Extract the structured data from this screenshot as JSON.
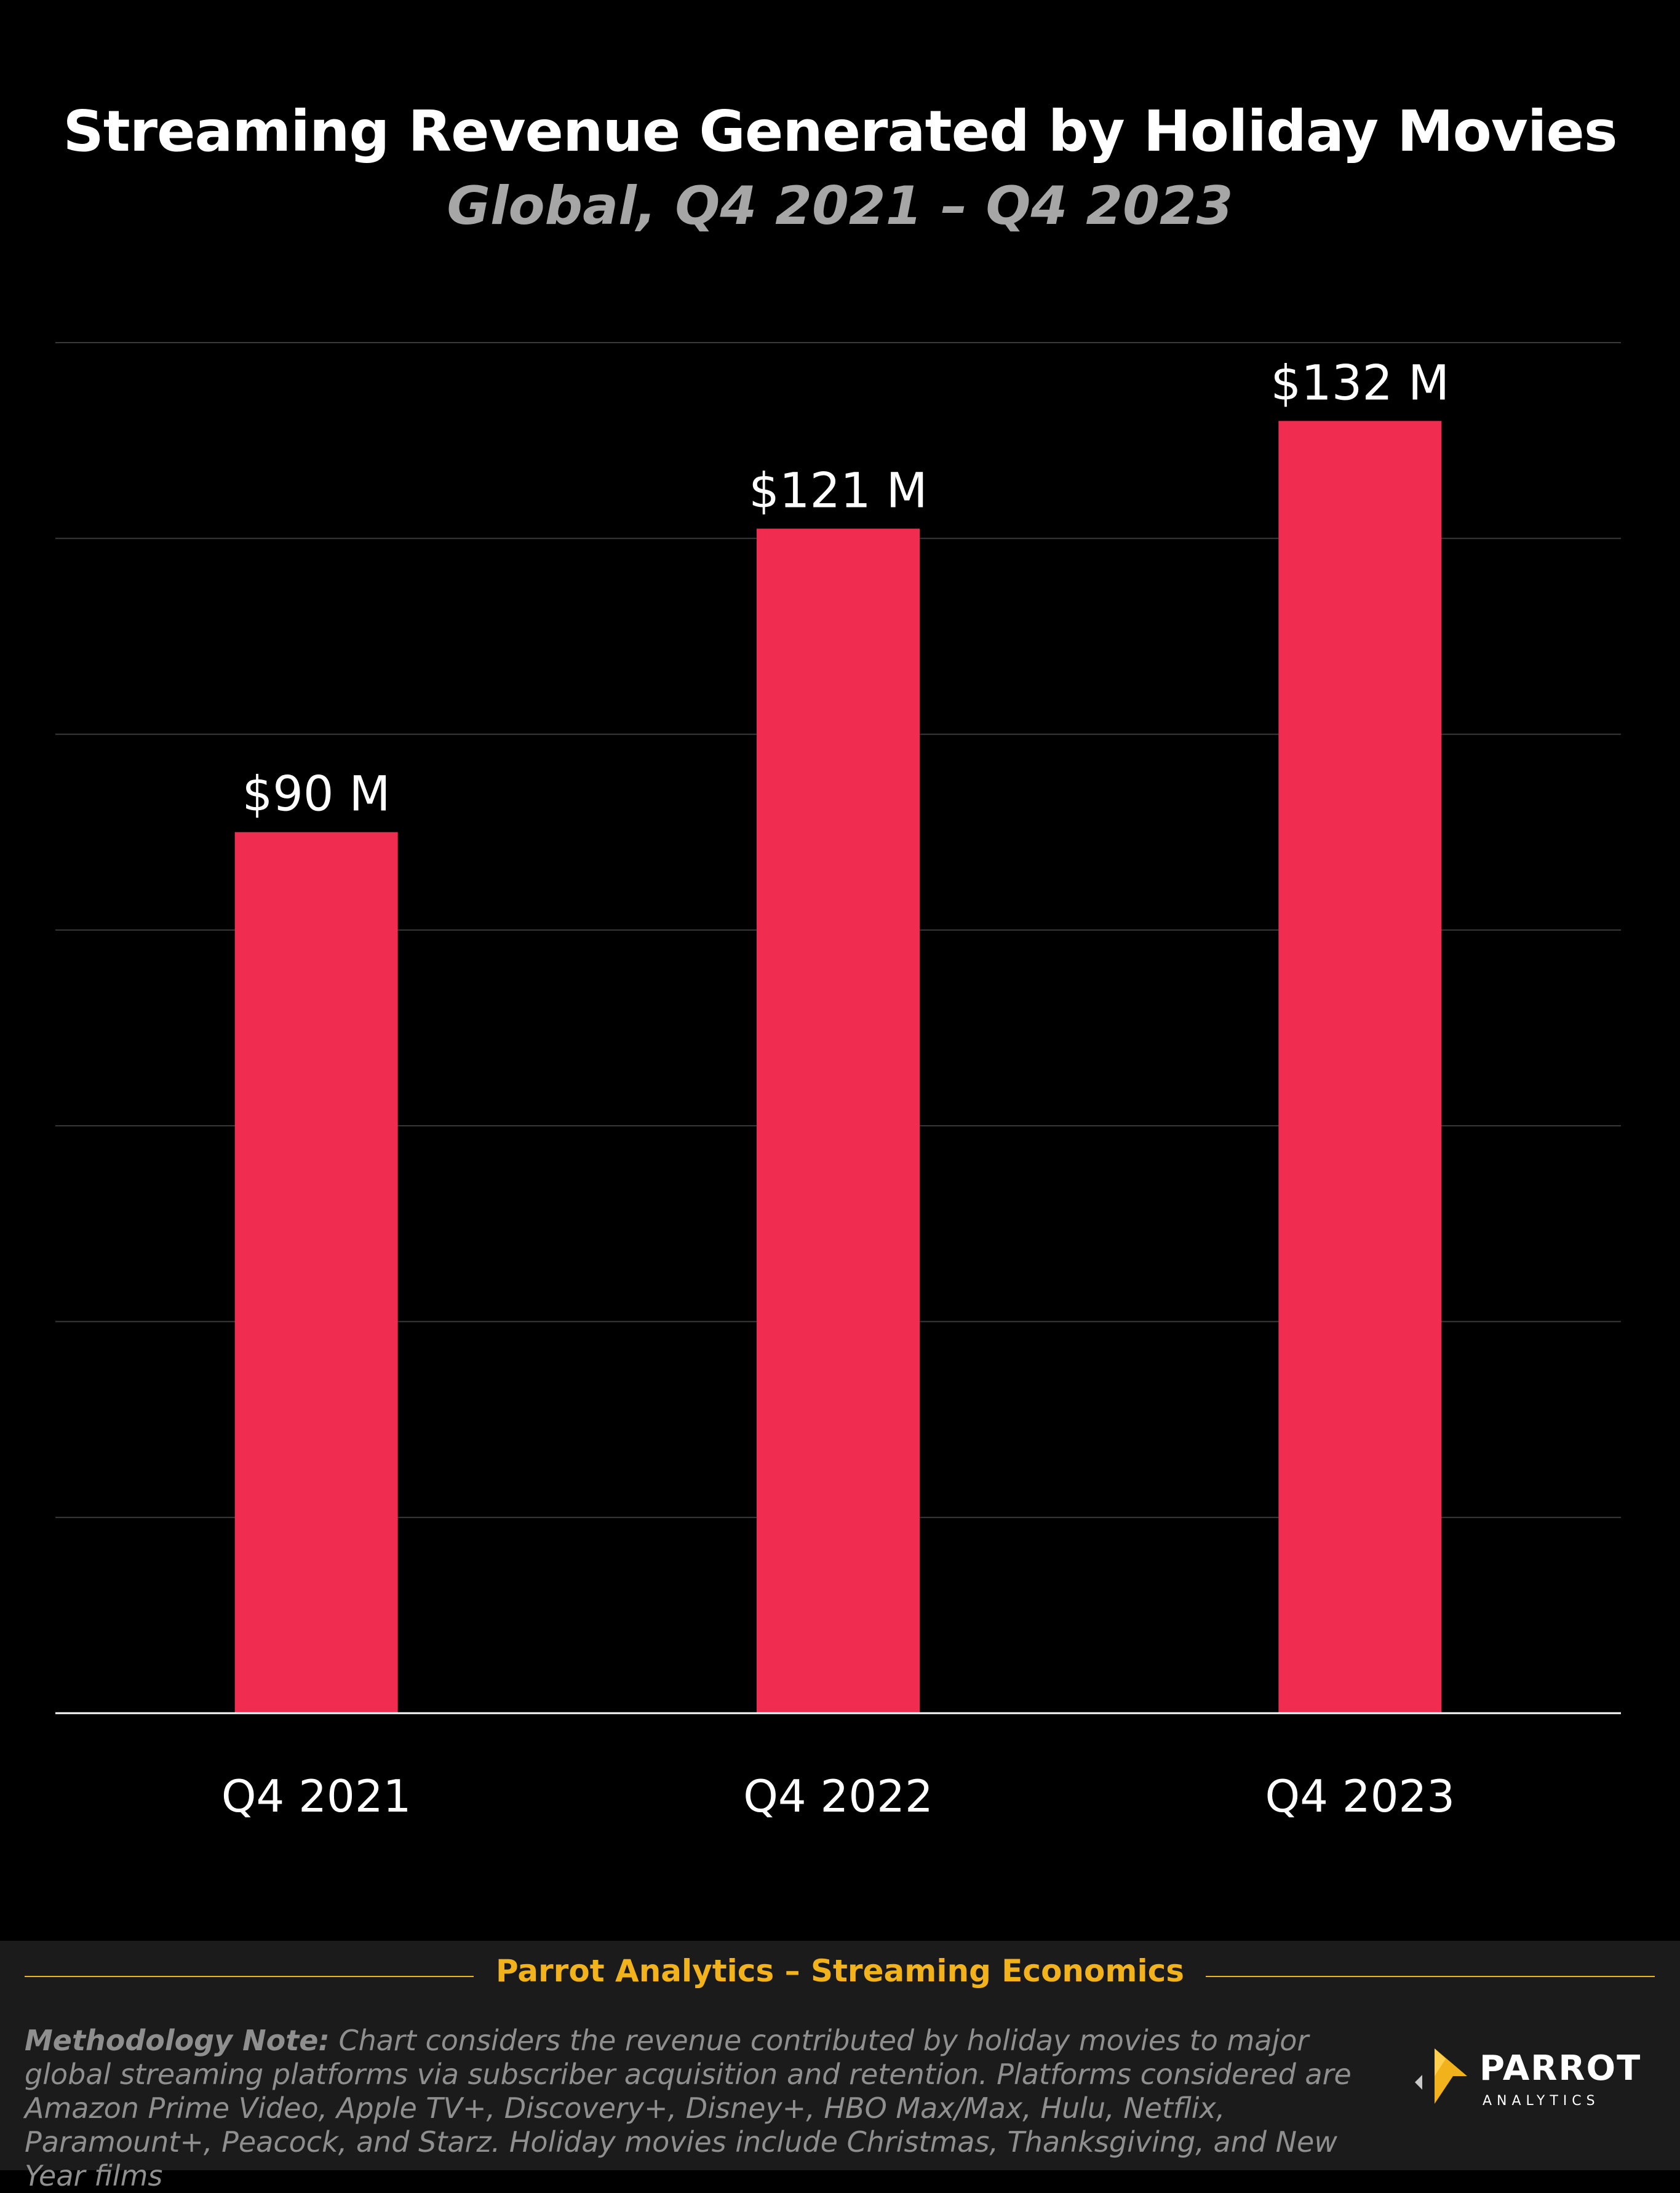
{
  "header": {
    "title": "Streaming Revenue Generated by Holiday Movies",
    "subtitle": "Global, Q4 2021 – Q4 2023"
  },
  "chart_data": {
    "type": "bar",
    "title": "Streaming Revenue Generated by Holiday Movies",
    "subtitle": "Global, Q4 2021 – Q4 2023",
    "categories": [
      "Q4 2021",
      "Q4 2022",
      "Q4 2023"
    ],
    "values": [
      90,
      121,
      132
    ],
    "data_labels": [
      "$90 M",
      "$121 M",
      "$132 M"
    ],
    "xlabel": "",
    "ylabel": "",
    "ylim": [
      0,
      140
    ],
    "gridlines": [
      0,
      20,
      40,
      60,
      80,
      100,
      120,
      140
    ],
    "grid": true,
    "y_tick_labels_shown": false,
    "legend": "none",
    "bar_color": "#f02d50"
  },
  "footer": {
    "source": "Parrot Analytics – Streaming Economics",
    "note_label": "Methodology Note:",
    "note_text": " Chart considers the revenue contributed by holiday movies to major global streaming platforms via subscriber acquisition and retention.  Platforms considered are Amazon Prime Video, Apple TV+, Discovery+, Disney+, HBO Max/Max, Hulu, Netflix, Paramount+, Peacock, and Starz.  Holiday movies include Christmas, Thanksgiving, and New Year films",
    "logo_name": "PARROT",
    "logo_sub": "ANALYTICS",
    "accent_color": "#f2b21c"
  }
}
